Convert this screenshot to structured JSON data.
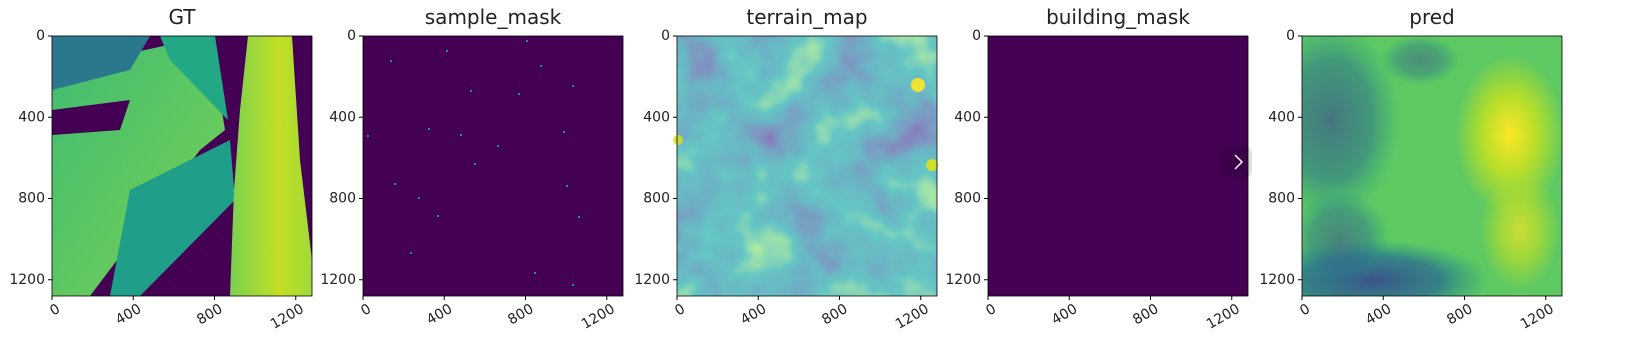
{
  "chart_data": [
    {
      "type": "image",
      "title": "GT",
      "xlim": [
        0,
        1280
      ],
      "ylim": [
        1280,
        0
      ],
      "xticks": [
        0,
        400,
        800,
        1200
      ],
      "yticks": [
        0,
        400,
        800,
        1200
      ]
    },
    {
      "type": "image",
      "title": "sample_mask",
      "xlim": [
        0,
        1280
      ],
      "ylim": [
        1280,
        0
      ],
      "xticks": [
        0,
        400,
        800,
        1200
      ],
      "yticks": [
        0,
        400,
        800,
        1200
      ]
    },
    {
      "type": "image",
      "title": "terrain_map",
      "xlim": [
        0,
        1280
      ],
      "ylim": [
        1280,
        0
      ],
      "xticks": [
        0,
        400,
        800,
        1200
      ],
      "yticks": [
        0,
        400,
        800,
        1200
      ]
    },
    {
      "type": "image",
      "title": "building_mask",
      "xlim": [
        0,
        1280
      ],
      "ylim": [
        1280,
        0
      ],
      "xticks": [
        0,
        400,
        800,
        1200
      ],
      "yticks": [
        0,
        400,
        800,
        1200
      ]
    },
    {
      "type": "image",
      "title": "pred",
      "xlim": [
        0,
        1280
      ],
      "ylim": [
        1280,
        0
      ],
      "xticks": [
        0,
        400,
        800,
        1200
      ],
      "yticks": [
        0,
        400,
        800,
        1200
      ]
    }
  ]
}
